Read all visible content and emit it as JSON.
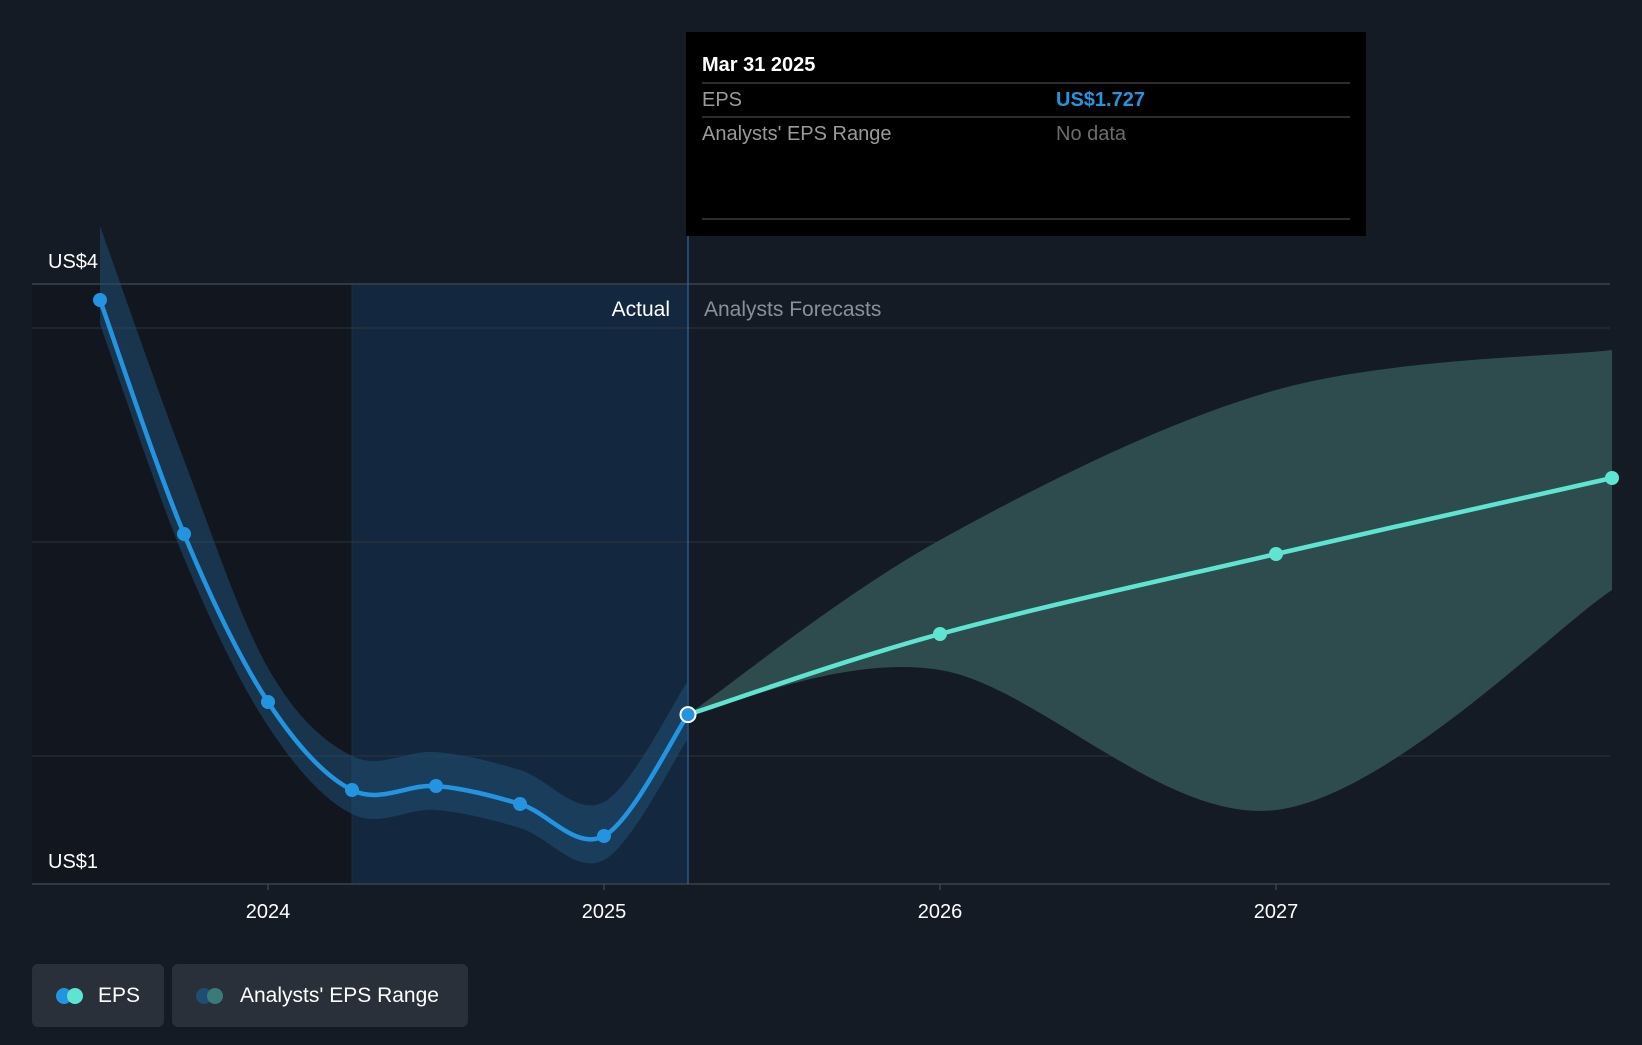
{
  "colors": {
    "background": "#151b24",
    "actual_line": "#2394df",
    "forecast_line": "#5de5d1",
    "forecast_band": "#2f4f51",
    "actual_band": "#1f4e73",
    "actual_region": "#13283e",
    "tooltip_bg": "#000000",
    "tooltip_value": "#2394df"
  },
  "chart_data": {
    "type": "line",
    "y_axis": {
      "labels": [
        "US$4",
        "US$1"
      ],
      "ylim": [
        1,
        4
      ],
      "grid": true
    },
    "x_axis": {
      "ticks": [
        "2024",
        "2025",
        "2026",
        "2027"
      ],
      "tick_values": [
        2024.0,
        2025.0,
        2026.0,
        2027.0
      ]
    },
    "regions": {
      "actual_label": "Actual",
      "forecast_label": "Analysts Forecasts",
      "split_x": 2025.25,
      "highlight_start_x": 2024.25
    },
    "series": [
      {
        "name": "EPS",
        "kind": "actual",
        "points": [
          {
            "x": 2023.5,
            "y": 3.8
          },
          {
            "x": 2023.75,
            "y": 2.63
          },
          {
            "x": 2024.0,
            "y": 1.79
          },
          {
            "x": 2024.25,
            "y": 1.35
          },
          {
            "x": 2024.5,
            "y": 1.37
          },
          {
            "x": 2024.75,
            "y": 1.28
          },
          {
            "x": 2025.0,
            "y": 1.12
          },
          {
            "x": 2025.25,
            "y": 1.727
          }
        ]
      },
      {
        "name": "EPS",
        "kind": "forecast",
        "points": [
          {
            "x": 2025.25,
            "y": 1.727
          },
          {
            "x": 2026.0,
            "y": 2.13
          },
          {
            "x": 2027.0,
            "y": 2.53
          },
          {
            "x": 2028.0,
            "y": 2.91
          }
        ]
      },
      {
        "name": "Analysts' EPS Range",
        "kind": "range",
        "upper": [
          {
            "x": 2025.25,
            "y": 1.727
          },
          {
            "x": 2026.0,
            "y": 2.6
          },
          {
            "x": 2027.0,
            "y": 3.35
          },
          {
            "x": 2028.0,
            "y": 3.55
          }
        ],
        "lower": [
          {
            "x": 2025.25,
            "y": 1.727
          },
          {
            "x": 2026.0,
            "y": 1.95
          },
          {
            "x": 2027.0,
            "y": 1.25
          },
          {
            "x": 2028.0,
            "y": 2.35
          }
        ]
      }
    ],
    "tooltip": {
      "date": "Mar 31 2025",
      "rows": [
        {
          "label": "EPS",
          "value": "US$1.727"
        },
        {
          "label": "Analysts' EPS Range",
          "value": "No data"
        }
      ]
    }
  },
  "legend": {
    "items": [
      {
        "label": "EPS",
        "colors": [
          "#2394df",
          "#5de5d1"
        ]
      },
      {
        "label": "Analysts' EPS Range",
        "colors": [
          "#1f4e73",
          "#3a7a78"
        ]
      }
    ]
  }
}
